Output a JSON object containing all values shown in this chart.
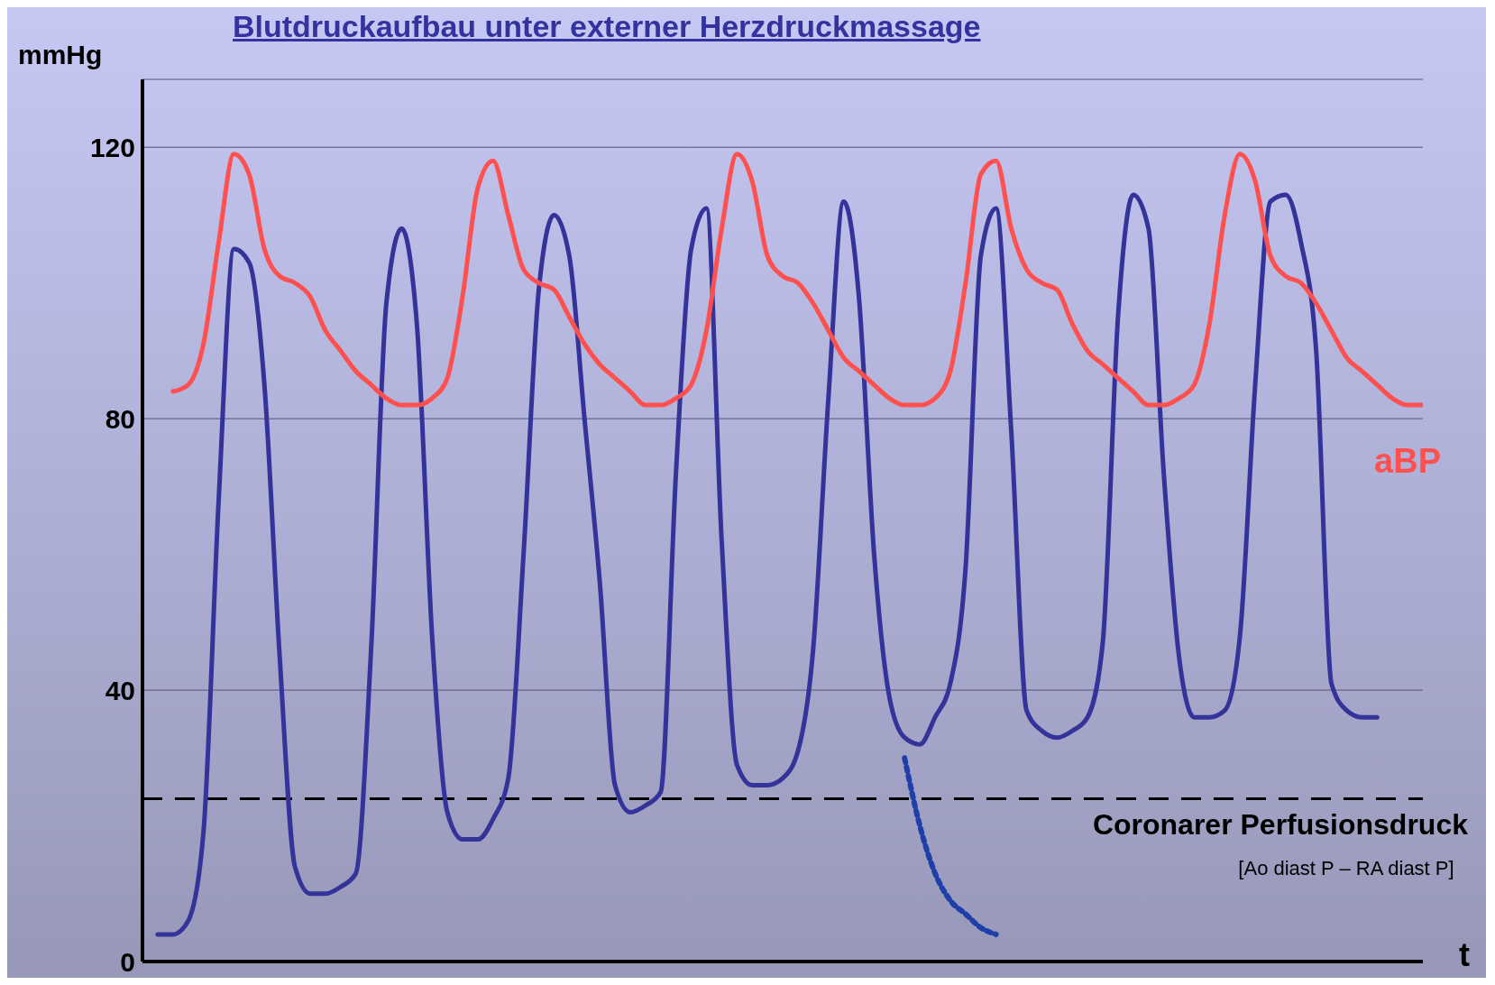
{
  "chart_data": {
    "type": "line",
    "title": "Blutdruckaufbau unter externer Herzdruckmassage",
    "xlabel": "t",
    "ylabel": "mmHg",
    "categories": [
      null,
      null,
      null,
      null,
      null,
      null,
      null,
      null,
      null,
      null,
      null,
      null,
      null,
      null,
      null,
      null,
      null,
      null,
      null,
      null,
      null,
      null,
      null,
      null,
      null,
      null,
      null,
      null,
      null,
      null,
      null,
      null,
      null,
      null,
      null,
      null,
      null,
      null,
      null,
      null,
      null,
      null,
      null,
      null,
      null,
      null,
      null,
      null,
      null,
      null,
      null,
      null,
      null,
      null,
      null,
      null,
      null,
      null,
      null,
      null,
      null,
      null,
      null,
      null,
      null,
      null,
      null,
      null,
      null,
      null,
      null,
      null,
      null,
      null,
      null,
      null,
      null,
      null,
      null,
      null,
      null,
      null,
      null,
      null
    ],
    "series": [
      {
        "color": "#333399",
        "line_style": "solid",
        "values": [
          4,
          4,
          6,
          19,
          68,
          105,
          103,
          85,
          45,
          14,
          10,
          10,
          11,
          13,
          46,
          97,
          108,
          94,
          48,
          22,
          18,
          18,
          21,
          27,
          60,
          99,
          110,
          104,
          80,
          56,
          26,
          22,
          23,
          25,
          72,
          105,
          111,
          62,
          29,
          26,
          26,
          27,
          31,
          46,
          83,
          112,
          98,
          60,
          39,
          33,
          32,
          36,
          41,
          58,
          104,
          111,
          78,
          37,
          34,
          33,
          34,
          36,
          47,
          95,
          113,
          108,
          72,
          45,
          36,
          36,
          37,
          48,
          85,
          112,
          113,
          106,
          90,
          41,
          37,
          36,
          36,
          null,
          null,
          null
        ]
      },
      {
        "name": "aBP",
        "color": "#ff5050",
        "line_style": "solid",
        "values": [
          null,
          84,
          85,
          91,
          106,
          119,
          116,
          105,
          101,
          100,
          98,
          93,
          90,
          87,
          85,
          83,
          82,
          82,
          83,
          86,
          98,
          114,
          118,
          110,
          102,
          100,
          99,
          95,
          91,
          88,
          86,
          84,
          82,
          82,
          83,
          85,
          93,
          108,
          119,
          115,
          104,
          101,
          100,
          97,
          93,
          89,
          87,
          85,
          83,
          82,
          82,
          83,
          87,
          100,
          116,
          118,
          108,
          102,
          100,
          99,
          94,
          90,
          88,
          86,
          84,
          82,
          82,
          83,
          85,
          94,
          110,
          119,
          115,
          104,
          101,
          100,
          97,
          93,
          89,
          87,
          85,
          83,
          82,
          82
        ]
      },
      {
        "color": "#1f3fa8",
        "line_style": "dotted",
        "values": [
          null,
          null,
          null,
          null,
          null,
          null,
          null,
          null,
          null,
          null,
          null,
          null,
          null,
          null,
          null,
          null,
          null,
          null,
          null,
          null,
          null,
          null,
          null,
          null,
          null,
          null,
          null,
          null,
          null,
          null,
          null,
          null,
          null,
          null,
          null,
          null,
          null,
          null,
          null,
          null,
          null,
          null,
          null,
          null,
          null,
          null,
          null,
          null,
          null,
          30,
          20,
          13,
          9,
          7,
          5,
          4,
          null,
          null,
          null,
          null,
          null,
          null,
          null,
          null,
          null,
          null,
          null,
          null,
          null,
          null,
          null,
          null,
          null,
          null,
          null,
          null,
          null,
          null,
          null,
          null,
          null,
          null,
          null,
          null
        ]
      }
    ],
    "ylim": [
      0,
      130
    ],
    "yticks": [
      0,
      40,
      80,
      120
    ],
    "grid": "y",
    "tick_labels": "y",
    "marker": "none",
    "ref_lines": [
      {
        "axis": "y",
        "value": 24,
        "label": "Coronarer Perfusionsdruck",
        "color": "#000000",
        "line_style": "dashed"
      }
    ],
    "annotations": [
      "[Ao diast P –  RA diast P]"
    ]
  }
}
